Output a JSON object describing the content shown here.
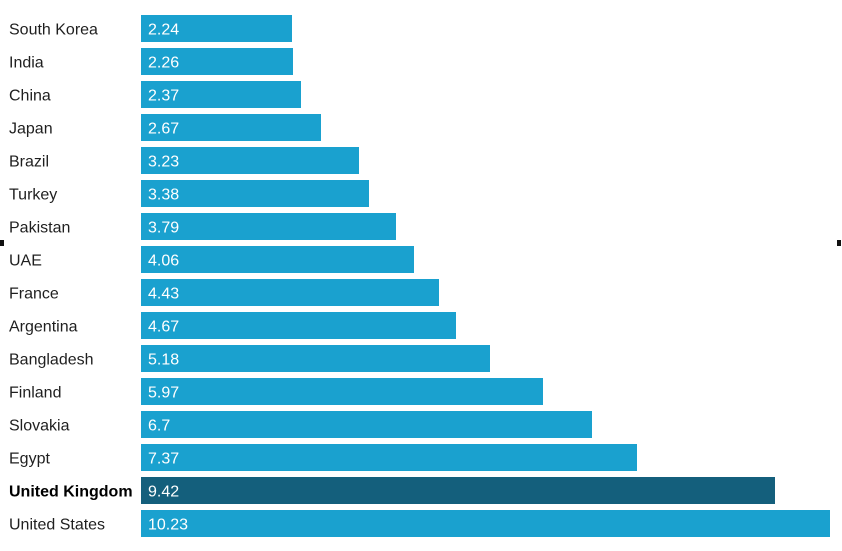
{
  "chart_data": {
    "type": "bar",
    "orientation": "horizontal",
    "title": "",
    "xlabel": "",
    "ylabel": "",
    "xlim": [
      0,
      10.23
    ],
    "grid": false,
    "legend": "none",
    "highlight_category": "United Kingdom",
    "colors": {
      "bar": "#1aa1cf",
      "highlight": "#145f7c",
      "value_text": "#ffffff",
      "label_text": "#1f1f1f"
    },
    "categories": [
      "South Korea",
      "India",
      "China",
      "Japan",
      "Brazil",
      "Turkey",
      "Pakistan",
      "UAE",
      "France",
      "Argentina",
      "Bangladesh",
      "Finland",
      "Slovakia",
      "Egypt",
      "United Kingdom",
      "United States"
    ],
    "values": [
      2.24,
      2.26,
      2.37,
      2.67,
      3.23,
      3.38,
      3.79,
      4.06,
      4.43,
      4.67,
      5.18,
      5.97,
      6.7,
      7.37,
      9.42,
      10.23
    ],
    "value_labels": [
      "2.24",
      "2.26",
      "2.37",
      "2.67",
      "3.23",
      "3.38",
      "3.79",
      "4.06",
      "4.43",
      "4.67",
      "5.18",
      "5.97",
      "6.7",
      "7.37",
      "9.42",
      "10.23"
    ]
  }
}
